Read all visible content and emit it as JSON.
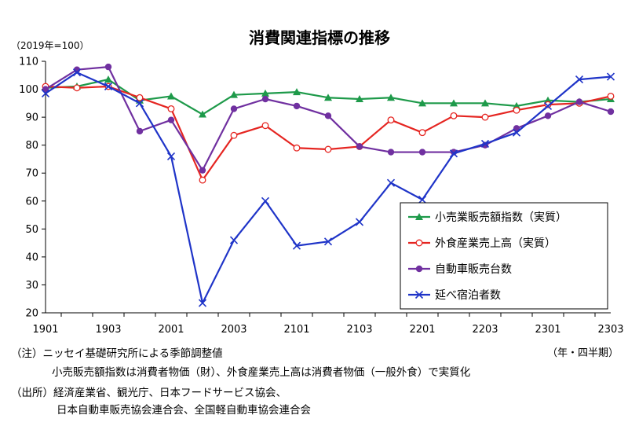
{
  "chart_data": {
    "type": "line",
    "title": "消費関連指標の推移",
    "unit_label": "（2019年=100）",
    "x_label": "（年・四半期）",
    "categories": [
      "1901",
      "1902",
      "1903",
      "1904",
      "2001",
      "2002",
      "2003",
      "2004",
      "2101",
      "2102",
      "2103",
      "2104",
      "2201",
      "2202",
      "2203",
      "2204",
      "2301",
      "2302",
      "2303"
    ],
    "x_tick_labels": [
      "1901",
      "1903",
      "2001",
      "2003",
      "2101",
      "2103",
      "2201",
      "2203",
      "2301",
      "2303"
    ],
    "ylim": [
      20,
      110
    ],
    "y_ticks": [
      20,
      30,
      40,
      50,
      60,
      70,
      80,
      90,
      100,
      110
    ],
    "grid": false,
    "legend_position": "bottom-right",
    "series": [
      {
        "name": "小売業販売額指数（実質）",
        "color": "#1e9a4a",
        "marker": "triangle",
        "values": [
          100.5,
          101,
          103.5,
          96,
          97.5,
          91,
          98,
          98.5,
          99,
          97,
          96.5,
          97,
          95,
          95,
          95,
          94,
          96,
          95.5,
          96.5
        ]
      },
      {
        "name": "外食産業売上高（実質）",
        "color": "#e52521",
        "marker": "circle-open",
        "values": [
          101,
          100.5,
          101,
          97,
          93,
          67.5,
          83.5,
          87,
          79,
          78.5,
          79.5,
          89,
          84.5,
          90.5,
          90,
          92.5,
          94.5,
          95,
          97.5
        ]
      },
      {
        "name": "自動車販売台数",
        "color": "#7030a0",
        "marker": "circle",
        "values": [
          100,
          107,
          108,
          85,
          89,
          71,
          93,
          96.5,
          94,
          90.5,
          79.5,
          77.5,
          77.5,
          77.5,
          80,
          86,
          90.5,
          95.5,
          92
        ]
      },
      {
        "name": "延べ宿泊者数",
        "color": "#1f34c8",
        "marker": "x",
        "values": [
          98.5,
          106,
          101,
          95,
          76,
          23.5,
          46,
          60,
          44,
          45.5,
          52.5,
          66.5,
          60.5,
          77,
          80.5,
          84.5,
          94,
          103.5,
          104.5
        ]
      }
    ]
  },
  "notes": {
    "note_line1": "（注）ニッセイ基礎研究所による季節調整値",
    "note_line2": "小売販売額指数は消費者物価（財）、外食産業売上高は消費者物価（一般外食）で実質化",
    "source_line1": "（出所）経済産業省、観光庁、日本フードサービス協会、",
    "source_line2": "日本自動車販売協会連合会、全国軽自動車協会連合会"
  }
}
